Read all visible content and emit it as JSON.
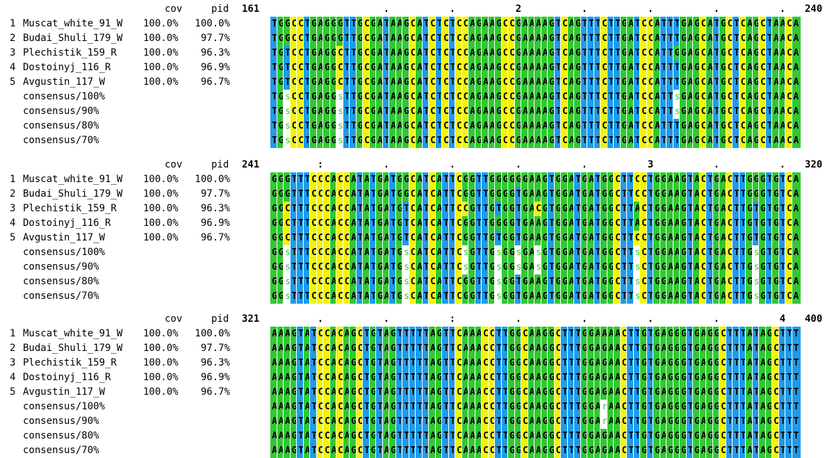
{
  "header": {
    "cov": "cov",
    "pid": "pid"
  },
  "sequences": [
    {
      "num": "1",
      "name": "Muscat_white_91_W",
      "cov": "100.0%",
      "pid": "100.0%"
    },
    {
      "num": "2",
      "name": "Budai_Shuli_179_W",
      "cov": "100.0%",
      "pid": "97.7%"
    },
    {
      "num": "3",
      "name": "Plechistik_159_R",
      "cov": "100.0%",
      "pid": "96.3%"
    },
    {
      "num": "4",
      "name": "Dostoinyj_116_R",
      "cov": "100.0%",
      "pid": "96.9%"
    },
    {
      "num": "5",
      "name": "Avgustin_117_W",
      "cov": "100.0%",
      "pid": "96.7%"
    }
  ],
  "consensus_labels": [
    "consensus/100%",
    "consensus/90%",
    "consensus/80%",
    "consensus/70%"
  ],
  "colors": {
    "A": "#32c832",
    "T": "#1f9bea",
    "C": "#f4f400",
    "G": "#32c832",
    "gap": "#ffffff",
    "text": "#000000",
    "lowercase_text": "#32c832"
  },
  "blocks": [
    {
      "start": "161",
      "end": "240",
      "ruler": [
        {
          "pos": 17,
          "label": "."
        },
        {
          "pos": 27,
          "label": "."
        },
        {
          "pos": 37,
          "label": "2"
        },
        {
          "pos": 47,
          "label": "."
        },
        {
          "pos": 57,
          "label": "."
        },
        {
          "pos": 67,
          "label": "."
        },
        {
          "pos": 77,
          "label": "."
        }
      ],
      "rows": [
        "TGGCCTGAGGGTTGCGATAAGCATCTCTCCAGAAGCCGAAAAGTCAGTTTCTTGATCCATTTGAGCATGCTCAGCTAACA",
        "TGGCCTGAGGGTTGCGATAAGCATCTCTCCAGAAGCCGAAAAGTCAGTTTCTTGATCCATTTGAGCATGCTCAGCTAACA",
        "TGTCCTGAGGCTTGCGATAAGCATCTCTCCAGAAGCCGAAAAGTCAGTTTCTTGATCCATTGGAGCATGCTCAGCTAACA",
        "TGTCCTGAGGCTTGCGATAAGCATCTCTCCAGAAGCCGAAAAGTCAGTTTCTTGATCCATTTGAGCATGCTCAGCTAACA",
        "TGTCCTGAGGCTTGCGATAAGCATCTCTCCAGAAGCCGAAAAGTCAGTTTCTTGATCCATTTGAGCATGCTCAGCTAACA",
        "TGsCCTGAGGsTTGCGATAAGCATCTCTCCAGAAGCCGAAAAGTCAGTTTCTTGATCCATTsGAGCATGCTCAGCTAACA",
        "TGsCCTGAGGsTTGCGATAAGCATCTCTCCAGAAGCCGAAAAGTCAGTTTCTTGATCCATTsGAGCATGCTCAGCTAACA",
        "TGsCCTGAGGsTTGCGATAAGCATCTCTCCAGAAGCCGAAAAGTCAGTTTCTTGATCCATTTGAGCATGCTCAGCTAACA",
        "TGsCCTGAGGsTTGCGATAAGCATCTCTCCAGAAGCCGAAAAGTCAGTTTCTTGATCCATTTGAGCATGCTCAGCTAACA"
      ]
    },
    {
      "start": "241",
      "end": "320",
      "ruler": [
        {
          "pos": 7,
          "label": ":"
        },
        {
          "pos": 17,
          "label": "."
        },
        {
          "pos": 27,
          "label": "."
        },
        {
          "pos": 37,
          "label": "."
        },
        {
          "pos": 47,
          "label": "."
        },
        {
          "pos": 57,
          "label": "3"
        },
        {
          "pos": 67,
          "label": "."
        },
        {
          "pos": 77,
          "label": "."
        }
      ],
      "rows": [
        "GGGTTTCCCACCATATGATGGCATCATTCGGTTGGGGGGAAGTGGATGATGGCTTCCTGGAAGTACTGACTTGGGTGTCA",
        "GGGTTTCCCACCATATGATGGCATCATTCGGTTGGGGTGAAGTGGATGATGGCTTCCTGGAAGTACTGACTTGGGTGTCA",
        "GGCTTTCCCACCATATGATGTCATCATTCCGTTGTGGTGACGTGGATGATGGCTTACTGGAAGTACTGACTTGTGTGTCA",
        "GGCTTTCCCACCATATGATGTCATCATTCGGTTGGGGTGAAGTGGATGATGGCTTACTGGAAGTACTGACTTGTGTGTCA",
        "GGCTTTCCCACCATATGATGTCATCATTCGGTTGTGGTGAAGTGGATGATGGCTTCCTGGAAGTACTGACTTGTGTGTCA",
        "GGsTTTCCCACCATATGATGsCATCATTCsGTTGsGGsGAsGTGGATGATGGCTTsCTGGAAGTACTGACTTGsGTGTCA",
        "GGsTTTCCCACCATATGATGsCATCATTCsGTTGsGGsGAsGTGGATGATGGCTTsCTGGAAGTACTGACTTGsGTGTCA",
        "GGsTTTCCCACCATATGATGsCATCATTCGGTTGsGGTGAAGTGGATGATGGCTTsCTGGAAGTACTGACTTGsGTGTCA",
        "GGsTTTCCCACCATATGATGsCATCATTCGGTTGsGGTGAAGTGGATGATGGCTTsCTGGAAGTACTGACTTGsGTGTCA"
      ]
    },
    {
      "start": "321",
      "end": "400",
      "ruler": [
        {
          "pos": 7,
          "label": "."
        },
        {
          "pos": 17,
          "label": "."
        },
        {
          "pos": 27,
          "label": ":"
        },
        {
          "pos": 37,
          "label": "."
        },
        {
          "pos": 47,
          "label": "."
        },
        {
          "pos": 57,
          "label": "."
        },
        {
          "pos": 67,
          "label": "."
        },
        {
          "pos": 77,
          "label": "4"
        }
      ],
      "rows": [
        "AAAGTATCCACAGCTGTAGTTTTTAGTTCAAACCTTGGCAAGGCTTTGGAAAACTTGTGAGGGTGAGGCTTTATAGCTTT",
        "AAAGTATCCACAGCTGTAGTTTTTAGTTCAAACCTTGGCAAGGCTTTGGAGAACTTGTGAGGGTGAGGCTTTATAGCTTT",
        "AAAGTATCCACAGCTGTAGTTTTTAGTTCAAACCTTGGCAAGGCTTTGGAGAACTTGTGAGGGTGAGGCTTTATAGCTTT",
        "AAAGTATCCACAGCTGTAGTTTTTAGTTCAAACCTTGGCAAGGCTTTGGAGAACTTGTGAGGGTGAGGCTTTATAGCTTT",
        "AAAGTATCCACAGCTGTAGTTTTTAGTTCAAACCTTGGCAAGGCTTTGGAGAACTTGTGAGGGTGAGGCTTTATAGCTTT",
        "AAAGTATCCACAGCTGTAGTTTTTAGTTCAAACCTTGGCAAGGCTTTGGArAACTTGTGAGGGTGAGGCTTTATAGCTTT",
        "AAAGTATCCACAGCTGTAGTTTTTAGTTCAAACCTTGGCAAGGCTTTGGArAACTTGTGAGGGTGAGGCTTTATAGCTTT",
        "AAAGTATCCACAGCTGTAGTTTTTAGTTCAAACCTTGGCAAGGCTTTGGAGAACTTGTGAGGGTGAGGCTTTATAGCTTT",
        "AAAGTATCCACAGCTGTAGTTTTTAGTTCAAACCTTGGCAAGGCTTTGGAGAACTTGTGAGGGTGAGGCTTTATAGCTTT"
      ]
    }
  ]
}
